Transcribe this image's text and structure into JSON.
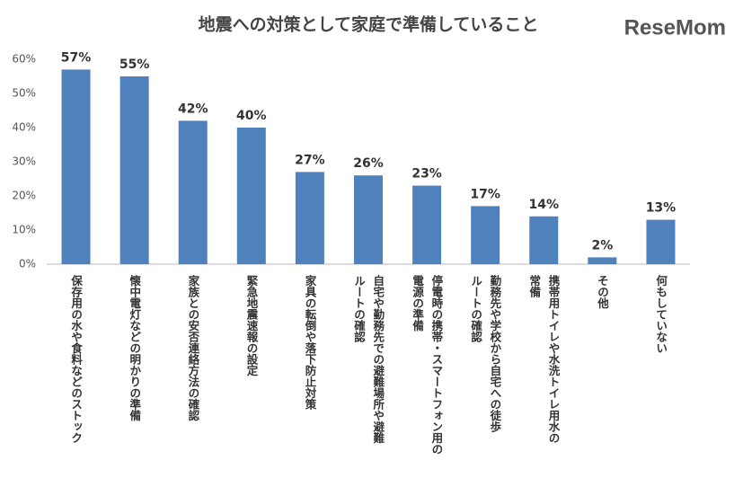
{
  "chart_data": {
    "type": "bar",
    "title": "地震への対策として家庭で準備していること",
    "logo": "ReseMom",
    "categories": [
      "保存用の水や食料などのストック",
      "懐中電灯などの明かりの準備",
      "家族との安否連絡方法の確認",
      "緊急地震速報の設定",
      "家具の転倒や落下防止対策",
      "自宅や勤務先での避難場所や避難\nルートの確認",
      "停電時の携帯・スマートフォン用の\n電源の準備",
      "勤務先や学校から自宅への徒歩\nルートの確認",
      "携帯用トイレや水洗トイレ用水の\n常備",
      "その他",
      "何もしていない"
    ],
    "values": [
      57,
      55,
      42,
      40,
      27,
      26,
      23,
      17,
      14,
      2,
      13
    ],
    "value_labels": [
      "57%",
      "55%",
      "42%",
      "40%",
      "27%",
      "26%",
      "23%",
      "17%",
      "14%",
      "2%",
      "13%"
    ],
    "color": "#4f81bd",
    "ylim": [
      0,
      60
    ],
    "yticks": [
      {
        "value": 0,
        "label": "0%"
      },
      {
        "value": 10,
        "label": "10%"
      },
      {
        "value": 20,
        "label": "20%"
      },
      {
        "value": 30,
        "label": "30%"
      },
      {
        "value": 40,
        "label": "40%"
      },
      {
        "value": 50,
        "label": "50%"
      },
      {
        "value": 60,
        "label": "60%"
      }
    ],
    "grid": false
  }
}
